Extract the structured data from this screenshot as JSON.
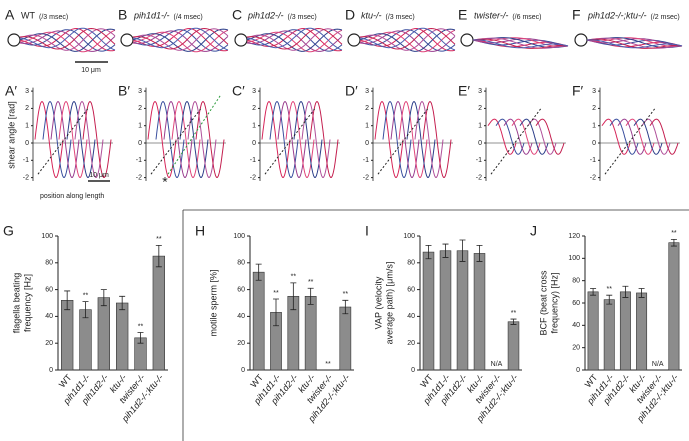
{
  "figure": {
    "panels": [
      {
        "letter": "A",
        "genotype": "WT",
        "timing": "(/3 msec)",
        "shear_letter": "A′"
      },
      {
        "letter": "B",
        "genotype": "pih1d1-/-",
        "timing": "(/4 msec)",
        "shear_letter": "B′"
      },
      {
        "letter": "C",
        "genotype": "pih1d2-/-",
        "timing": "(/3 msec)",
        "shear_letter": "C′"
      },
      {
        "letter": "D",
        "genotype": "ktu-/-",
        "timing": "(/3 msec)",
        "shear_letter": "D′"
      },
      {
        "letter": "E",
        "genotype": "twister-/-",
        "timing": "(/6 msec)",
        "shear_letter": "E′"
      },
      {
        "letter": "F",
        "genotype": "pih1d2-/-;ktu-/-",
        "timing": "(/2 msec)",
        "shear_letter": "F′"
      }
    ],
    "scale_bar": "10 μm",
    "shear_ylabel": "shear angle [rad]",
    "shear_xlabel": "position along length",
    "shear_yticks": [
      -2,
      -1,
      0,
      1,
      2,
      3
    ],
    "shear_annotation": "*"
  },
  "chart_data": [
    {
      "type": "bar",
      "panel": "G",
      "ylabel": [
        "flagella beating",
        "frequency [Hz]"
      ],
      "categories": [
        "WT",
        "pih1d1-/-",
        "pih1d2-/-",
        "ktu-/-",
        "twister-/-",
        "pih1d2-/-;ktu-/-"
      ],
      "values": [
        52,
        45,
        54,
        50,
        24,
        85
      ],
      "errors": [
        7,
        6,
        6,
        5,
        4,
        8
      ],
      "marks": [
        null,
        "**",
        null,
        null,
        "**",
        "**"
      ],
      "ylim": [
        0,
        100
      ],
      "yticks": [
        0,
        20,
        40,
        60,
        80,
        100
      ],
      "color": "#8c8c8c"
    },
    {
      "type": "bar",
      "panel": "H",
      "ylabel": [
        "motile sperm [%]"
      ],
      "categories": [
        "WT",
        "pih1d1-/-",
        "pih1d2-/-",
        "ktu-/-",
        "twister-/-",
        "pih1d2-/-;ktu-/-"
      ],
      "values": [
        73,
        43,
        55,
        55,
        0,
        47
      ],
      "errors": [
        6,
        10,
        10,
        6,
        null,
        5
      ],
      "marks": [
        null,
        "**",
        "**",
        "**",
        "**",
        "**"
      ],
      "ylim": [
        0,
        100
      ],
      "yticks": [
        0,
        20,
        40,
        60,
        80,
        100
      ],
      "color": "#8c8c8c"
    },
    {
      "type": "bar",
      "panel": "I",
      "ylabel": [
        "VAP (velocity",
        "average path) [μm/s]"
      ],
      "categories": [
        "WT",
        "pih1d1-/-",
        "pih1d2-/-",
        "ktu-/-",
        "twister-/-",
        "pih1d2-/-;ktu-/-"
      ],
      "values": [
        88,
        89,
        89,
        87,
        null,
        36
      ],
      "errors": [
        5,
        5,
        8,
        6,
        null,
        2
      ],
      "marks": [
        null,
        null,
        null,
        null,
        "N/A",
        "**"
      ],
      "ylim": [
        0,
        100
      ],
      "yticks": [
        0,
        20,
        40,
        60,
        80,
        100
      ],
      "color": "#8c8c8c"
    },
    {
      "type": "bar",
      "panel": "J",
      "ylabel": [
        "BCF (beat cross",
        "frequency) [Hz]"
      ],
      "categories": [
        "WT",
        "pih1d1-/-",
        "pih1d2-/-",
        "ktu-/-",
        "twister-/-",
        "pih1d2-/-;ktu-/-"
      ],
      "values": [
        70,
        63,
        70,
        69,
        null,
        114
      ],
      "errors": [
        3,
        4,
        5,
        4,
        null,
        3
      ],
      "marks": [
        null,
        "**",
        null,
        null,
        "N/A",
        "**"
      ],
      "ylim": [
        0,
        120
      ],
      "yticks": [
        0,
        20,
        40,
        60,
        80,
        100,
        120
      ],
      "color": "#8c8c8c"
    }
  ]
}
